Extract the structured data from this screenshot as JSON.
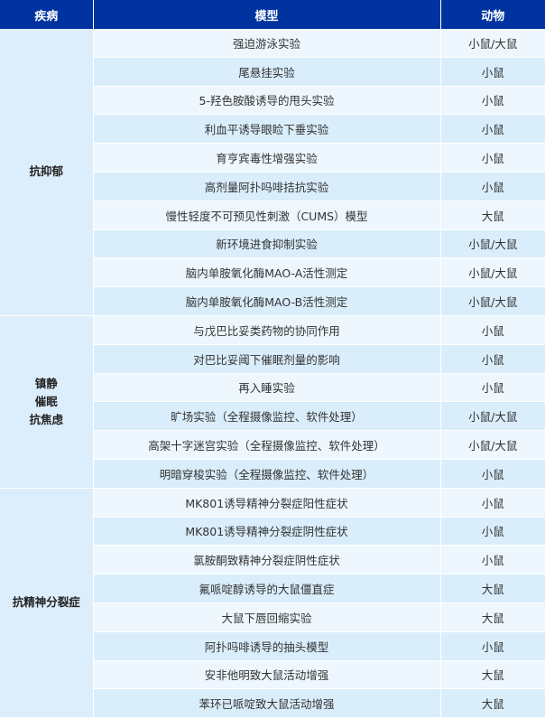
{
  "colors": {
    "header_bg": "#0033a0",
    "row_light": "#eef7fe",
    "row_dark": "#d9edfb"
  },
  "headers": {
    "disease": "疾病",
    "model": "模型",
    "animal": "动物"
  },
  "groups": [
    {
      "disease_lines": [
        "抗抑郁"
      ],
      "rows": [
        {
          "model": "强迫游泳实验",
          "animal": "小鼠/大鼠"
        },
        {
          "model": "尾悬挂实验",
          "animal": "小鼠"
        },
        {
          "model": "5-羟色胺酸诱导的甩头实验",
          "animal": "小鼠"
        },
        {
          "model": "利血平诱导眼睑下垂实验",
          "animal": "小鼠"
        },
        {
          "model": "育亨宾毒性增强实验",
          "animal": "小鼠"
        },
        {
          "model": "高剂量阿扑吗啡拮抗实验",
          "animal": "小鼠"
        },
        {
          "model": "慢性轻度不可预见性刺激（CUMS）模型",
          "animal": "大鼠"
        },
        {
          "model": "新环境进食抑制实验",
          "animal": "小鼠/大鼠"
        },
        {
          "model": "脑内单胺氧化酶MAO-A活性测定",
          "animal": "小鼠/大鼠"
        },
        {
          "model": "脑内单胺氧化酶MAO-B活性测定",
          "animal": "小鼠/大鼠"
        }
      ]
    },
    {
      "disease_lines": [
        "镇静",
        "催眠",
        "抗焦虑"
      ],
      "rows": [
        {
          "model": "与戊巴比妥类药物的协同作用",
          "animal": "小鼠"
        },
        {
          "model": "对巴比妥阈下催眠剂量的影响",
          "animal": "小鼠"
        },
        {
          "model": "再入睡实验",
          "animal": "小鼠"
        },
        {
          "model": "旷场实验（全程摄像监控、软件处理）",
          "animal": "小鼠/大鼠"
        },
        {
          "model": "高架十字迷宫实验（全程摄像监控、软件处理）",
          "animal": "小鼠/大鼠"
        },
        {
          "model": "明暗穿梭实验（全程摄像监控、软件处理）",
          "animal": "小鼠"
        }
      ]
    },
    {
      "disease_lines": [
        "抗精神分裂症"
      ],
      "rows": [
        {
          "model": "MK801诱导精神分裂症阳性症状",
          "animal": "小鼠"
        },
        {
          "model": "MK801诱导精神分裂症阴性症状",
          "animal": "小鼠"
        },
        {
          "model": "氯胺酮致精神分裂症阴性症状",
          "animal": "小鼠"
        },
        {
          "model": "氟哌啶醇诱导的大鼠僵直症",
          "animal": "大鼠"
        },
        {
          "model": "大鼠下唇回缩实验",
          "animal": "大鼠"
        },
        {
          "model": "阿扑吗啡诱导的抽头模型",
          "animal": "小鼠"
        },
        {
          "model": "安非他明致大鼠活动增强",
          "animal": "大鼠"
        },
        {
          "model": "苯环已哌啶致大鼠活动增强",
          "animal": "大鼠"
        }
      ]
    }
  ]
}
